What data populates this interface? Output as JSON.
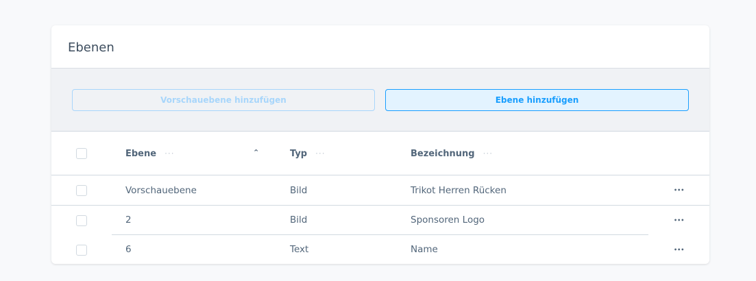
{
  "card": {
    "title": "Ebenen"
  },
  "toolbar": {
    "add_preview_label": "Vorschauebene hinzufügen",
    "add_layer_label": "Ebene hinzufügen"
  },
  "table": {
    "columns": [
      {
        "label": "Ebene",
        "sort": "ascending"
      },
      {
        "label": "Typ"
      },
      {
        "label": "Bezeichnung"
      }
    ],
    "column_menu_glyph": "···",
    "row_menu_glyph": "•••",
    "rows": [
      {
        "ebene": "Vorschauebene",
        "typ": "Bild",
        "bezeichnung": "Trikot Herren Rücken"
      },
      {
        "ebene": "2",
        "typ": "Bild",
        "bezeichnung": "Sponsoren Logo"
      },
      {
        "ebene": "6",
        "typ": "Text",
        "bezeichnung": "Name"
      }
    ]
  },
  "colors": {
    "accent": "#189eff",
    "accent_bg": "#e3f3ff",
    "text": "#52667a"
  }
}
